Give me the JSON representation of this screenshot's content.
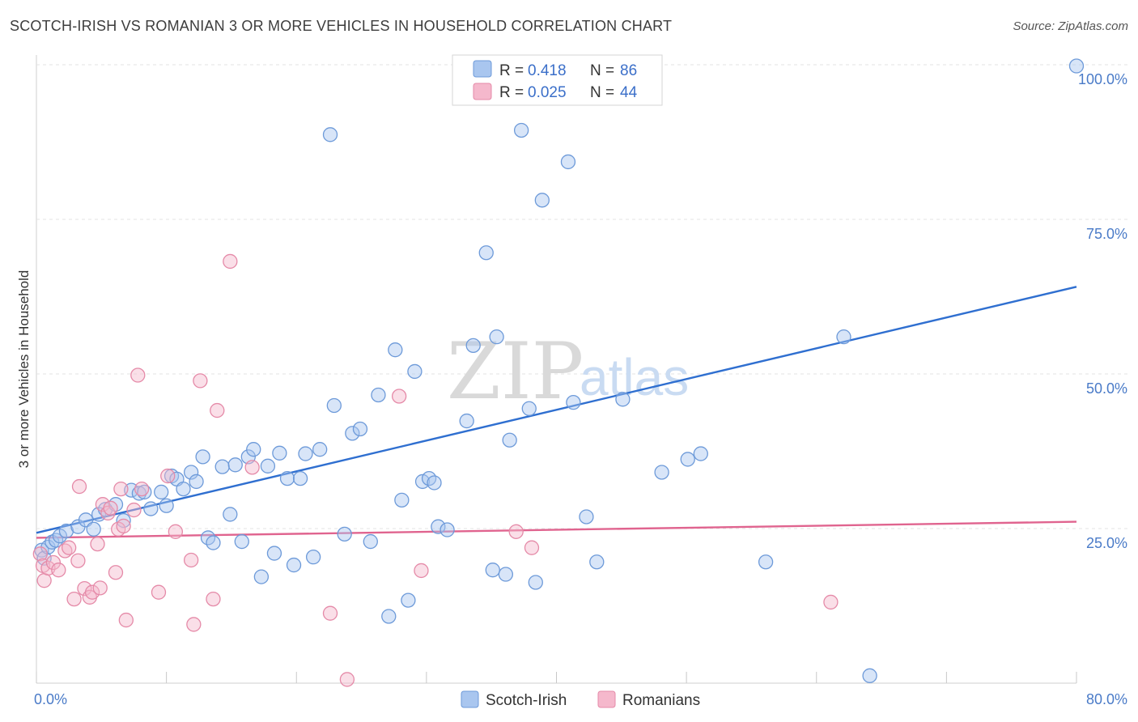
{
  "header": {
    "title": "SCOTCH-IRISH VS ROMANIAN 3 OR MORE VEHICLES IN HOUSEHOLD CORRELATION CHART",
    "source": "Source: ZipAtlas.com"
  },
  "watermark": {
    "zip": "ZIP",
    "atlas": "atlas"
  },
  "legend_stats": [
    {
      "r_label": "R =",
      "r_value": "0.418",
      "n_label": "N =",
      "n_value": "86"
    },
    {
      "r_label": "R =",
      "r_value": "0.025",
      "n_label": "N =",
      "n_value": "44"
    }
  ],
  "colors": {
    "blue_fill": "#a9c6ef",
    "blue_stroke": "#6d9ad9",
    "blue_line": "#2f6fd0",
    "pink_fill": "#f5b8cc",
    "pink_stroke": "#e58aa8",
    "pink_line": "#e0648f",
    "tick_text": "#4a7bc8"
  },
  "chart_data": {
    "type": "scatter",
    "title": "SCOTCH-IRISH VS ROMANIAN 3 OR MORE VEHICLES IN HOUSEHOLD CORRELATION CHART",
    "xlabel": "",
    "ylabel": "3 or more Vehicles in Household",
    "xlim": [
      0,
      80
    ],
    "ylim": [
      0,
      100
    ],
    "x_ticks_labeled": [
      "0.0%",
      "80.0%"
    ],
    "y_ticks": [
      25,
      50,
      75,
      100
    ],
    "y_tick_labels": [
      "25.0%",
      "50.0%",
      "75.0%",
      "100.0%"
    ],
    "grid": true,
    "legend_position": "bottom",
    "series": [
      {
        "name": "Scotch-Irish",
        "color": "#a9c6ef",
        "trend": {
          "x": [
            0,
            80
          ],
          "y": [
            24.3,
            64.1
          ]
        },
        "points": [
          [
            0.4,
            21.5
          ],
          [
            0.6,
            20.2
          ],
          [
            0.9,
            22.0
          ],
          [
            1.2,
            22.8
          ],
          [
            1.5,
            23.1
          ],
          [
            1.8,
            23.8
          ],
          [
            2.3,
            24.6
          ],
          [
            3.2,
            25.3
          ],
          [
            3.8,
            26.4
          ],
          [
            4.4,
            24.9
          ],
          [
            4.8,
            27.3
          ],
          [
            5.3,
            28.1
          ],
          [
            6.1,
            28.9
          ],
          [
            6.7,
            26.3
          ],
          [
            7.3,
            31.2
          ],
          [
            7.9,
            30.7
          ],
          [
            8.3,
            30.9
          ],
          [
            8.8,
            28.2
          ],
          [
            9.6,
            30.9
          ],
          [
            10.0,
            28.7
          ],
          [
            10.4,
            33.5
          ],
          [
            10.8,
            33.0
          ],
          [
            11.3,
            31.4
          ],
          [
            11.9,
            34.1
          ],
          [
            12.3,
            32.6
          ],
          [
            12.8,
            36.6
          ],
          [
            13.2,
            23.5
          ],
          [
            13.6,
            22.7
          ],
          [
            14.3,
            35.0
          ],
          [
            14.9,
            27.3
          ],
          [
            15.3,
            35.3
          ],
          [
            15.8,
            22.9
          ],
          [
            16.3,
            36.6
          ],
          [
            16.7,
            37.8
          ],
          [
            17.3,
            17.2
          ],
          [
            17.8,
            35.1
          ],
          [
            18.3,
            21.0
          ],
          [
            18.7,
            37.2
          ],
          [
            19.3,
            33.1
          ],
          [
            19.8,
            19.1
          ],
          [
            20.3,
            33.1
          ],
          [
            20.7,
            37.1
          ],
          [
            21.3,
            20.4
          ],
          [
            21.8,
            37.8
          ],
          [
            22.6,
            88.7
          ],
          [
            22.9,
            44.9
          ],
          [
            23.7,
            24.1
          ],
          [
            24.3,
            40.4
          ],
          [
            24.9,
            41.1
          ],
          [
            25.7,
            22.9
          ],
          [
            26.3,
            46.6
          ],
          [
            27.1,
            10.8
          ],
          [
            27.6,
            53.9
          ],
          [
            28.1,
            29.6
          ],
          [
            28.6,
            13.4
          ],
          [
            29.1,
            50.4
          ],
          [
            29.7,
            32.6
          ],
          [
            30.2,
            33.1
          ],
          [
            30.6,
            32.4
          ],
          [
            30.9,
            25.3
          ],
          [
            31.6,
            24.8
          ],
          [
            33.1,
            42.4
          ],
          [
            33.6,
            54.6
          ],
          [
            34.6,
            69.6
          ],
          [
            35.1,
            18.3
          ],
          [
            35.4,
            56.0
          ],
          [
            36.1,
            17.6
          ],
          [
            36.4,
            39.3
          ],
          [
            37.3,
            89.4
          ],
          [
            37.9,
            44.4
          ],
          [
            38.4,
            16.3
          ],
          [
            38.9,
            78.1
          ],
          [
            40.9,
            84.3
          ],
          [
            41.3,
            45.4
          ],
          [
            42.3,
            26.9
          ],
          [
            43.1,
            19.6
          ],
          [
            45.1,
            45.9
          ],
          [
            47.3,
            99.8
          ],
          [
            48.1,
            34.1
          ],
          [
            50.1,
            36.2
          ],
          [
            51.1,
            37.1
          ],
          [
            56.1,
            19.6
          ],
          [
            62.1,
            56.0
          ],
          [
            64.1,
            1.2
          ],
          [
            80.0,
            99.8
          ],
          [
            37.7,
            99.8
          ]
        ]
      },
      {
        "name": "Romanians",
        "color": "#f5b8cc",
        "trend": {
          "x": [
            0,
            80
          ],
          "y": [
            23.5,
            26.1
          ]
        },
        "points": [
          [
            0.3,
            20.9
          ],
          [
            0.5,
            19.0
          ],
          [
            0.6,
            16.6
          ],
          [
            0.9,
            18.6
          ],
          [
            1.3,
            19.5
          ],
          [
            1.7,
            18.3
          ],
          [
            2.2,
            21.4
          ],
          [
            2.5,
            21.9
          ],
          [
            2.9,
            13.6
          ],
          [
            3.2,
            19.8
          ],
          [
            3.3,
            31.8
          ],
          [
            3.7,
            15.3
          ],
          [
            4.1,
            13.9
          ],
          [
            4.3,
            14.7
          ],
          [
            4.7,
            22.5
          ],
          [
            4.9,
            15.4
          ],
          [
            5.1,
            28.9
          ],
          [
            5.5,
            27.5
          ],
          [
            5.7,
            28.3
          ],
          [
            6.1,
            17.9
          ],
          [
            6.3,
            24.9
          ],
          [
            6.5,
            31.4
          ],
          [
            6.7,
            25.4
          ],
          [
            6.9,
            10.2
          ],
          [
            7.5,
            28.0
          ],
          [
            7.8,
            49.8
          ],
          [
            8.1,
            31.4
          ],
          [
            9.4,
            14.7
          ],
          [
            10.1,
            33.5
          ],
          [
            10.7,
            24.5
          ],
          [
            11.9,
            19.9
          ],
          [
            12.1,
            9.5
          ],
          [
            12.6,
            48.9
          ],
          [
            13.6,
            13.6
          ],
          [
            13.9,
            44.1
          ],
          [
            14.9,
            68.2
          ],
          [
            16.6,
            34.9
          ],
          [
            22.6,
            11.3
          ],
          [
            23.9,
            0.6
          ],
          [
            27.9,
            46.4
          ],
          [
            29.6,
            18.2
          ],
          [
            36.9,
            24.5
          ],
          [
            38.1,
            21.9
          ],
          [
            61.1,
            13.1
          ]
        ]
      }
    ]
  }
}
